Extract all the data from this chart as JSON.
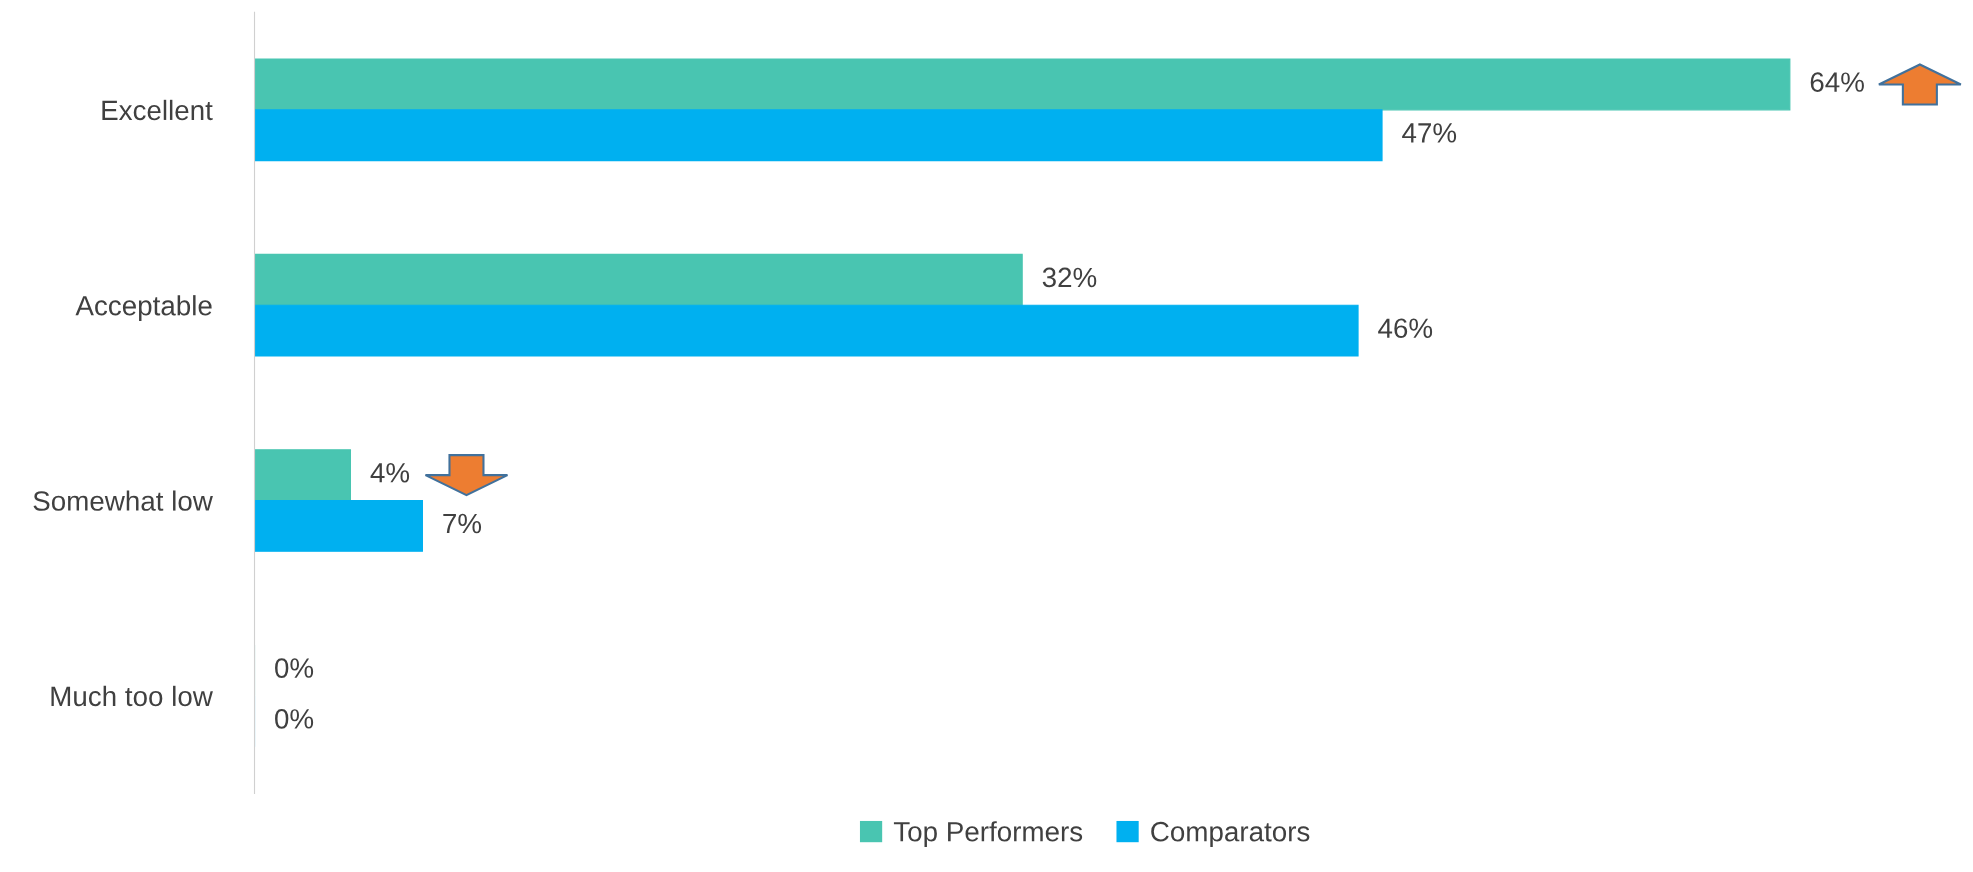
{
  "chart_data": {
    "type": "bar",
    "orientation": "horizontal",
    "categories": [
      "Excellent",
      "Acceptable",
      "Somewhat low",
      "Much too low"
    ],
    "series": [
      {
        "name": "Top Performers",
        "color": "#49c5b1",
        "values": [
          64,
          32,
          4,
          0
        ],
        "value_labels": [
          "64%",
          "32%",
          "4%",
          "0%"
        ]
      },
      {
        "name": "Comparators",
        "color": "#00b0f0",
        "values": [
          47,
          46,
          7,
          0
        ],
        "value_labels": [
          "47%",
          "46%",
          "7%",
          "0%"
        ]
      }
    ],
    "legend": "bottom",
    "grid": false
  }
}
